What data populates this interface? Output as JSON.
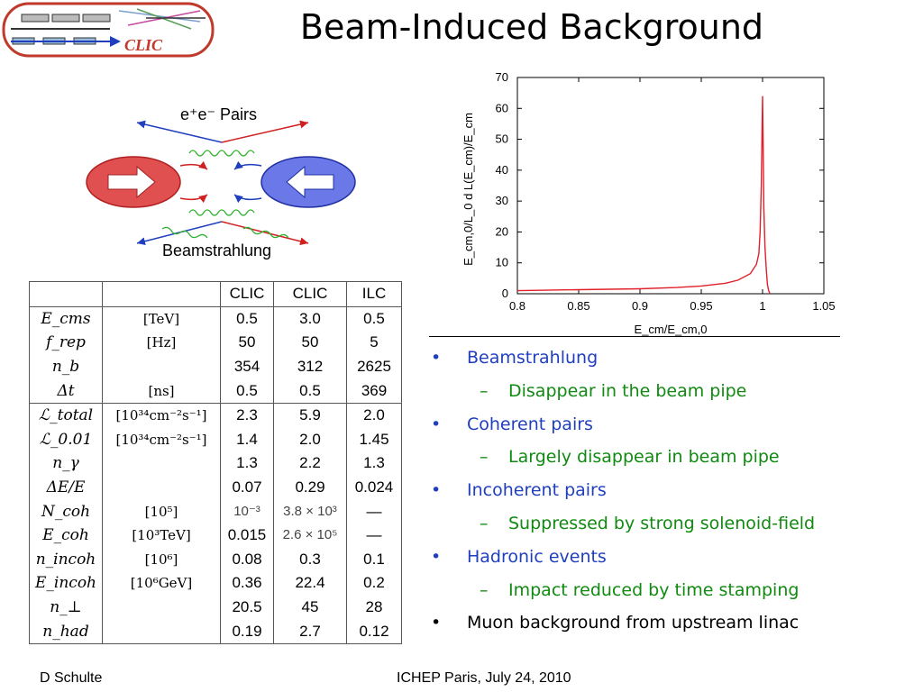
{
  "slide": {
    "title": "Beam-Induced Background",
    "logo_text": "CLIC",
    "footer_left": "D  Schulte",
    "footer_right": "ICHEP Paris, July 24, 2010"
  },
  "diagram": {
    "top_label": "e⁺e⁻  Pairs",
    "bottom_label": "Beamstrahlung"
  },
  "table": {
    "headers": [
      "",
      "",
      "CLIC",
      "CLIC",
      "ILC"
    ],
    "rows": [
      {
        "symbol": "E_cms",
        "unit": "[TeV]",
        "v": [
          "0.5",
          "3.0",
          "0.5"
        ]
      },
      {
        "symbol": "f_rep",
        "unit": "[Hz]",
        "v": [
          "50",
          "50",
          "5"
        ]
      },
      {
        "symbol": "n_b",
        "unit": "",
        "v": [
          "354",
          "312",
          "2625"
        ]
      },
      {
        "symbol": "Δt",
        "unit": "[ns]",
        "v": [
          "0.5",
          "0.5",
          "369"
        ]
      },
      {
        "symbol": "ℒ_total",
        "unit": "[10³⁴cm⁻²s⁻¹]",
        "v": [
          "2.3",
          "5.9",
          "2.0"
        ]
      },
      {
        "symbol": "ℒ_0.01",
        "unit": "[10³⁴cm⁻²s⁻¹]",
        "v": [
          "1.4",
          "2.0",
          "1.45"
        ]
      },
      {
        "symbol": "n_γ",
        "unit": "",
        "v": [
          "1.3",
          "2.2",
          "1.3"
        ]
      },
      {
        "symbol": "ΔE/E",
        "unit": "",
        "v": [
          "0.07",
          "0.29",
          "0.024"
        ]
      },
      {
        "symbol": "N_coh",
        "unit": "[10⁵]",
        "v": [
          "10⁻³",
          "3.8 × 10³",
          "—"
        ]
      },
      {
        "symbol": "E_coh",
        "unit": "[10³TeV]",
        "v": [
          "0.015",
          "2.6 × 10⁵",
          "—"
        ]
      },
      {
        "symbol": "n_incoh",
        "unit": "[10⁶]",
        "v": [
          "0.08",
          "0.3",
          "0.1"
        ]
      },
      {
        "symbol": "E_incoh",
        "unit": "[10⁶GeV]",
        "v": [
          "0.36",
          "22.4",
          "0.2"
        ]
      },
      {
        "symbol": "n_⊥",
        "unit": "",
        "v": [
          "20.5",
          "45",
          "28"
        ]
      },
      {
        "symbol": "n_had",
        "unit": "",
        "v": [
          "0.19",
          "2.7",
          "0.12"
        ]
      }
    ]
  },
  "bullets": [
    {
      "level": 1,
      "text": "Beamstrahlung",
      "color": "#1f3fbf"
    },
    {
      "level": 2,
      "text": "Disappear in the beam pipe",
      "color": "#108a10"
    },
    {
      "level": 1,
      "text": "Coherent pairs",
      "color": "#1f3fbf"
    },
    {
      "level": 2,
      "text": "Largely disappear in beam pipe",
      "color": "#108a10"
    },
    {
      "level": 1,
      "text": "Incoherent pairs",
      "color": "#1f3fbf"
    },
    {
      "level": 2,
      "text": "Suppressed by strong solenoid-field",
      "color": "#108a10"
    },
    {
      "level": 1,
      "text": "Hadronic events",
      "color": "#1f3fbf"
    },
    {
      "level": 2,
      "text": "Impact reduced by time stamping",
      "color": "#108a10"
    },
    {
      "level": 1,
      "text": "Muon background from upstream linac",
      "color": "#000000"
    }
  ],
  "chart_data": {
    "type": "line",
    "title": "",
    "xlabel": "E_cm/E_cm,0",
    "ylabel": "E_cm,0/L_0 d L(E_cm)/E_cm",
    "xlim": [
      0.8,
      1.05
    ],
    "ylim": [
      0,
      70
    ],
    "xticks": [
      "0.8",
      "0.85",
      "0.9",
      "0.95",
      "1",
      "1.05"
    ],
    "yticks": [
      "0",
      "10",
      "20",
      "30",
      "40",
      "50",
      "60",
      "70"
    ],
    "line_color": "#e0202a",
    "series": [
      {
        "x": [
          0.8,
          0.85,
          0.9,
          0.93,
          0.95,
          0.97,
          0.98,
          0.99,
          0.995,
          0.997,
          0.998,
          0.999,
          0.9995,
          1.0,
          1.0005,
          1.001,
          1.002,
          1.003,
          1.004,
          1.005,
          1.006
        ],
        "y": [
          1.0,
          1.3,
          1.6,
          2.0,
          2.5,
          3.4,
          4.4,
          6.5,
          9.5,
          13,
          20,
          35,
          50,
          64,
          47,
          28,
          15,
          8,
          3,
          1,
          0
        ]
      }
    ]
  }
}
